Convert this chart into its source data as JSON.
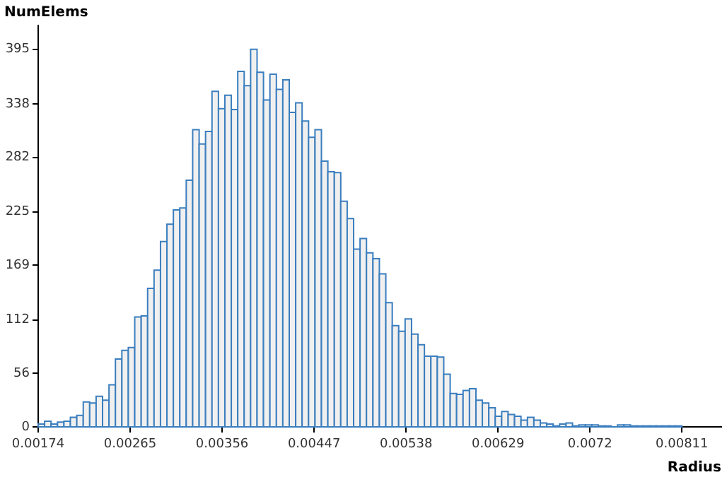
{
  "chart_data": {
    "type": "histogram",
    "xlabel": "Radius",
    "ylabel": "NumElems",
    "bins": [
      0.00174,
      0.0018037,
      0.0018674,
      0.0019311,
      0.0019948,
      0.0020585,
      0.0021222,
      0.0021859,
      0.0022496,
      0.0023133,
      0.002377,
      0.0024407,
      0.0025044,
      0.0025681,
      0.0026318,
      0.0026955,
      0.0027592,
      0.0028229,
      0.0028866,
      0.0029503,
      0.003014,
      0.0030777,
      0.0031414,
      0.0032051,
      0.0032688,
      0.0033325,
      0.0033962,
      0.0034599,
      0.0035236,
      0.0035873,
      0.003651,
      0.0037147,
      0.0037784,
      0.0038421,
      0.0039058,
      0.0039695,
      0.0040332,
      0.0040969,
      0.0041606,
      0.0042243,
      0.004288,
      0.0043517,
      0.0044154,
      0.0044791,
      0.0045428,
      0.0046065,
      0.0046702,
      0.0047339,
      0.0047976,
      0.0048613,
      0.004925,
      0.0049887,
      0.0050524,
      0.0051161,
      0.0051798,
      0.0052435,
      0.0053072,
      0.0053709,
      0.0054346,
      0.0054983,
      0.005562,
      0.0056257,
      0.0056894,
      0.0057531,
      0.0058168,
      0.0058805,
      0.0059442,
      0.0060079,
      0.0060716,
      0.0061353,
      0.006199,
      0.0062627,
      0.0063264,
      0.0063901,
      0.0064538,
      0.0065175,
      0.0065812,
      0.0066449,
      0.0067086,
      0.0067723,
      0.006836,
      0.0068997,
      0.0069634,
      0.0070271,
      0.0070908,
      0.0071545,
      0.0072182,
      0.0072819,
      0.0073456,
      0.0074093,
      0.007473,
      0.0075367,
      0.0076004,
      0.0076641,
      0.0077278,
      0.0077915,
      0.0078552,
      0.0079189,
      0.0079826,
      0.0080463,
      0.00811
    ],
    "values": [
      3,
      6,
      3,
      5,
      6,
      10,
      12,
      26,
      25,
      32,
      28,
      44,
      71,
      80,
      83,
      115,
      116,
      145,
      164,
      194,
      212,
      227,
      229,
      258,
      311,
      296,
      309,
      351,
      333,
      347,
      332,
      372,
      357,
      395,
      371,
      342,
      369,
      353,
      363,
      329,
      339,
      320,
      303,
      311,
      278,
      267,
      266,
      236,
      218,
      186,
      197,
      182,
      176,
      160,
      130,
      106,
      100,
      113,
      97,
      86,
      74,
      74,
      73,
      55,
      35,
      34,
      38,
      40,
      28,
      25,
      20,
      11,
      16,
      13,
      11,
      7,
      10,
      7,
      4,
      3,
      1,
      3,
      4,
      1,
      2,
      2,
      2,
      1,
      1,
      0,
      2,
      2,
      1,
      1,
      1,
      1,
      1,
      1,
      1,
      1
    ],
    "color": "#3a7ebf",
    "xlim": [
      0.00174,
      0.0085
    ],
    "xticks": [
      0.00174,
      0.00265,
      0.00356,
      0.00447,
      0.00538,
      0.00629,
      0.0072,
      0.00811
    ],
    "ylim": [
      0,
      420
    ],
    "yticks": [
      0,
      56,
      112,
      169,
      225,
      282,
      338,
      395
    ],
    "grid": false,
    "legend": false
  }
}
